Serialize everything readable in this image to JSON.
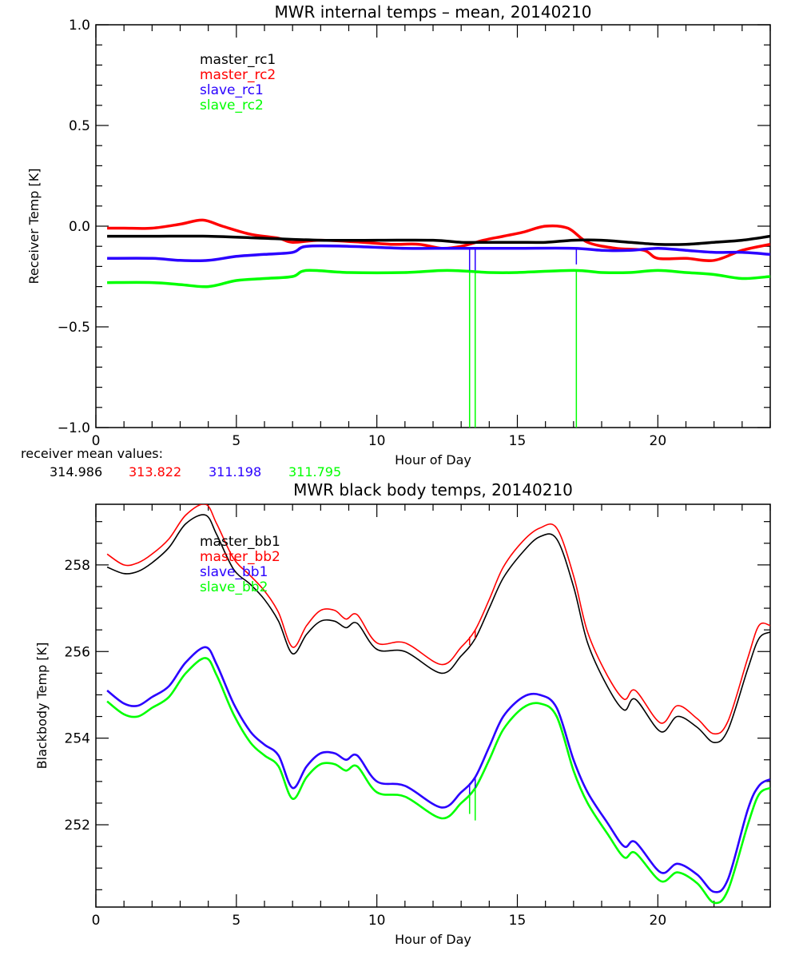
{
  "colors": {
    "black": "#000000",
    "red": "#ff0000",
    "blue": "#2a00ff",
    "green": "#00ff00"
  },
  "mean_values_label": "receiver mean values:",
  "mean_values": [
    {
      "text": "314.986",
      "color": "#000000"
    },
    {
      "text": "313.822",
      "color": "#ff0000"
    },
    {
      "text": "311.198",
      "color": "#2a00ff"
    },
    {
      "text": "311.795",
      "color": "#00ff00"
    }
  ],
  "chart_data": [
    {
      "type": "line",
      "title": "MWR internal temps – mean, 20140210",
      "xlabel": "Hour of Day",
      "ylabel": "Receiver Temp [K]",
      "xlim": [
        0,
        24
      ],
      "ylim": [
        -1.0,
        1.0
      ],
      "xticks": [
        0,
        5,
        10,
        15,
        20
      ],
      "xtick_labels": [
        "0",
        "5",
        "10",
        "15",
        "20"
      ],
      "yticks": [
        -1.0,
        -0.5,
        0.0,
        0.5,
        1.0
      ],
      "ytick_labels": [
        "−1.0",
        "−0.5",
        "0.0",
        "0.5",
        "1.0"
      ],
      "grid": false,
      "legend_position": "top-left",
      "series": [
        {
          "name": "master_rc1",
          "color": "#000000",
          "x": [
            0.4,
            2,
            4,
            6,
            8,
            10,
            12,
            13,
            14,
            15,
            16,
            17,
            18,
            19,
            20,
            21,
            22,
            23,
            24
          ],
          "y": [
            -0.05,
            -0.05,
            -0.05,
            -0.06,
            -0.07,
            -0.07,
            -0.07,
            -0.08,
            -0.08,
            -0.08,
            -0.08,
            -0.07,
            -0.07,
            -0.08,
            -0.09,
            -0.09,
            -0.08,
            -0.07,
            -0.05
          ]
        },
        {
          "name": "master_rc2",
          "color": "#ff0000",
          "x": [
            0.4,
            1,
            2,
            3,
            3.8,
            4.5,
            5.5,
            6.5,
            7,
            8,
            9.5,
            10.5,
            11.5,
            12.3,
            13,
            13.8,
            14.5,
            15.2,
            16,
            16.8,
            17.5,
            18.5,
            19.5,
            20,
            21,
            22,
            23,
            24
          ],
          "y": [
            -0.01,
            -0.01,
            -0.01,
            0.01,
            0.03,
            0.0,
            -0.04,
            -0.06,
            -0.08,
            -0.07,
            -0.08,
            -0.09,
            -0.09,
            -0.11,
            -0.1,
            -0.07,
            -0.05,
            -0.03,
            0.0,
            -0.01,
            -0.08,
            -0.11,
            -0.12,
            -0.16,
            -0.16,
            -0.17,
            -0.12,
            -0.09
          ]
        },
        {
          "name": "slave_rc1",
          "color": "#2a00ff",
          "x": [
            0.4,
            2,
            3,
            4,
            5,
            6,
            7,
            7.5,
            9,
            11,
            12.5,
            13.5,
            15,
            17,
            18,
            19,
            20,
            21,
            22,
            23,
            24
          ],
          "y": [
            -0.16,
            -0.16,
            -0.17,
            -0.17,
            -0.15,
            -0.14,
            -0.13,
            -0.1,
            -0.1,
            -0.11,
            -0.11,
            -0.11,
            -0.11,
            -0.11,
            -0.12,
            -0.12,
            -0.11,
            -0.12,
            -0.13,
            -0.13,
            -0.14
          ]
        },
        {
          "name": "slave_rc2",
          "color": "#00ff00",
          "x": [
            0.4,
            2,
            3,
            4,
            5,
            6,
            7,
            7.5,
            9,
            11,
            12.5,
            14,
            15,
            17,
            18,
            19,
            20,
            21,
            22,
            23,
            24
          ],
          "y": [
            -0.28,
            -0.28,
            -0.29,
            -0.3,
            -0.27,
            -0.26,
            -0.25,
            -0.22,
            -0.23,
            -0.23,
            -0.22,
            -0.23,
            -0.23,
            -0.22,
            -0.23,
            -0.23,
            -0.22,
            -0.23,
            -0.24,
            -0.26,
            -0.25
          ]
        }
      ],
      "spikes": [
        {
          "series": "slave_rc1",
          "x": 13.3,
          "y_to": -0.22
        },
        {
          "series": "slave_rc1",
          "x": 13.5,
          "y_to": -0.22
        },
        {
          "series": "slave_rc1",
          "x": 17.1,
          "y_to": -0.19
        },
        {
          "series": "slave_rc2",
          "x": 13.3,
          "y_to": -1.0
        },
        {
          "series": "slave_rc2",
          "x": 13.5,
          "y_to": -1.0
        },
        {
          "series": "slave_rc2",
          "x": 17.1,
          "y_to": -1.0
        }
      ]
    },
    {
      "type": "line",
      "title": "MWR black body temps, 20140210",
      "xlabel": "Hour of Day",
      "ylabel": "Blackbody Temp [K]",
      "xlim": [
        0,
        24
      ],
      "ylim": [
        250.1,
        259.4
      ],
      "xticks": [
        0,
        5,
        10,
        15,
        20
      ],
      "xtick_labels": [
        "0",
        "5",
        "10",
        "15",
        "20"
      ],
      "yticks": [
        252,
        254,
        256,
        258
      ],
      "ytick_labels": [
        "252",
        "254",
        "256",
        "258"
      ],
      "grid": false,
      "legend_position": "top-left",
      "series": [
        {
          "name": "master_bb1",
          "color": "#000000",
          "x": [
            0.4,
            1,
            1.5,
            2,
            2.6,
            3.2,
            3.9,
            4.3,
            4.9,
            5.5,
            6,
            6.5,
            7,
            7.5,
            8,
            8.5,
            8.9,
            9.3,
            10,
            11,
            12.3,
            13,
            13.5,
            14,
            14.5,
            15.2,
            15.8,
            16.4,
            17,
            17.5,
            18.2,
            18.8,
            19.2,
            20.1,
            20.7,
            21.4,
            22,
            22.5,
            23.2,
            23.6,
            24
          ],
          "y": [
            257.95,
            257.8,
            257.85,
            258.05,
            258.4,
            258.95,
            259.15,
            258.7,
            257.9,
            257.55,
            257.2,
            256.7,
            255.95,
            256.4,
            256.7,
            256.7,
            256.55,
            256.65,
            256.05,
            256.0,
            255.5,
            255.9,
            256.3,
            257.0,
            257.7,
            258.3,
            258.65,
            258.6,
            257.5,
            256.2,
            255.2,
            254.65,
            254.9,
            254.15,
            254.5,
            254.25,
            253.9,
            254.2,
            255.6,
            256.3,
            256.45
          ]
        },
        {
          "name": "master_bb2",
          "color": "#ff0000",
          "x": [
            0.4,
            1,
            1.5,
            2,
            2.6,
            3.2,
            3.9,
            4.3,
            4.9,
            5.5,
            6,
            6.5,
            7,
            7.5,
            8,
            8.5,
            8.9,
            9.3,
            10,
            11,
            12.3,
            13,
            13.5,
            14,
            14.5,
            15.2,
            15.8,
            16.4,
            17,
            17.5,
            18.2,
            18.8,
            19.2,
            20.1,
            20.7,
            21.4,
            22,
            22.5,
            23.2,
            23.6,
            24
          ],
          "y": [
            258.25,
            258.0,
            258.05,
            258.25,
            258.6,
            259.15,
            259.4,
            258.95,
            258.15,
            257.75,
            257.4,
            256.9,
            256.1,
            256.6,
            256.95,
            256.95,
            256.75,
            256.85,
            256.2,
            256.2,
            255.7,
            256.1,
            256.5,
            257.2,
            257.95,
            258.55,
            258.85,
            258.85,
            257.75,
            256.45,
            255.45,
            254.9,
            255.1,
            254.35,
            254.75,
            254.45,
            254.1,
            254.4,
            255.85,
            256.6,
            256.6
          ]
        },
        {
          "name": "slave_bb1",
          "color": "#2a00ff",
          "x": [
            0.4,
            1,
            1.5,
            2,
            2.6,
            3.2,
            3.9,
            4.3,
            4.9,
            5.5,
            6,
            6.5,
            7,
            7.5,
            8,
            8.5,
            8.9,
            9.3,
            10,
            11,
            12.3,
            13,
            13.5,
            14,
            14.5,
            15.2,
            15.8,
            16.4,
            17,
            17.5,
            18.2,
            18.8,
            19.2,
            20.1,
            20.7,
            21.4,
            22,
            22.5,
            23.2,
            23.6,
            24
          ],
          "y": [
            255.1,
            254.8,
            254.75,
            254.95,
            255.2,
            255.75,
            256.1,
            255.7,
            254.8,
            254.15,
            253.85,
            253.6,
            252.85,
            253.35,
            253.65,
            253.65,
            253.5,
            253.6,
            253.0,
            252.9,
            252.4,
            252.75,
            253.1,
            253.8,
            254.5,
            254.95,
            255.0,
            254.7,
            253.5,
            252.75,
            252.05,
            251.5,
            251.6,
            250.9,
            251.1,
            250.85,
            250.45,
            250.75,
            252.35,
            252.9,
            253.05
          ]
        },
        {
          "name": "slave_bb2",
          "color": "#00ff00",
          "x": [
            0.4,
            1,
            1.5,
            2,
            2.6,
            3.2,
            3.9,
            4.3,
            4.9,
            5.5,
            6,
            6.5,
            7,
            7.5,
            8,
            8.5,
            8.9,
            9.3,
            10,
            11,
            12.3,
            13,
            13.5,
            14,
            14.5,
            15.2,
            15.8,
            16.4,
            17,
            17.5,
            18.2,
            18.8,
            19.2,
            20.1,
            20.7,
            21.4,
            22,
            22.5,
            23.2,
            23.6,
            24
          ],
          "y": [
            254.85,
            254.55,
            254.5,
            254.7,
            254.95,
            255.5,
            255.85,
            255.45,
            254.55,
            253.9,
            253.6,
            253.35,
            252.6,
            253.1,
            253.4,
            253.4,
            253.25,
            253.35,
            252.75,
            252.65,
            252.15,
            252.5,
            252.85,
            253.5,
            254.2,
            254.7,
            254.8,
            254.5,
            253.25,
            252.5,
            251.8,
            251.25,
            251.35,
            250.7,
            250.9,
            250.65,
            250.2,
            250.5,
            252.0,
            252.7,
            252.85
          ]
        }
      ],
      "spikes": [
        {
          "series": "master_bb2",
          "x": 13.3,
          "y_to": 256.15
        },
        {
          "series": "master_bb2",
          "x": 13.5,
          "y_to": 256.3
        },
        {
          "series": "slave_bb1",
          "x": 13.3,
          "y_to": 252.5
        },
        {
          "series": "slave_bb1",
          "x": 13.5,
          "y_to": 252.45
        },
        {
          "series": "slave_bb2",
          "x": 13.3,
          "y_to": 252.25
        },
        {
          "series": "slave_bb2",
          "x": 13.5,
          "y_to": 252.1
        }
      ]
    }
  ]
}
